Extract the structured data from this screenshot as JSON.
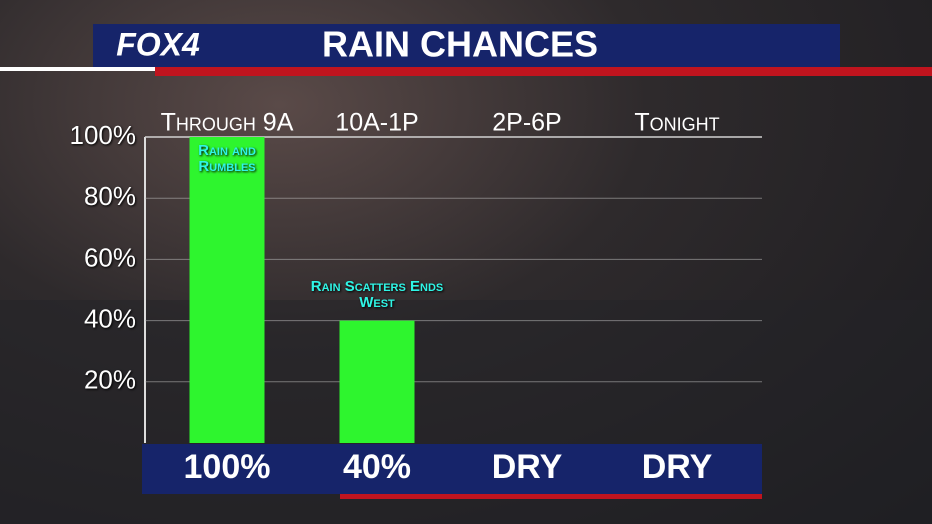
{
  "logo": "FOX4",
  "chart_data": {
    "type": "bar",
    "title": "RAIN CHANCES",
    "categories": [
      "Through 9A",
      "10A-1P",
      "2P-6P",
      "Tonight"
    ],
    "values": [
      100,
      40,
      0,
      0
    ],
    "value_labels": [
      "100%",
      "40%",
      "DRY",
      "DRY"
    ],
    "bar_notes": [
      "Rain and Rumbles",
      "Rain Scatters Ends West",
      null,
      null
    ],
    "color": "#2ef52e",
    "ylim": [
      0,
      100
    ],
    "yticks": [
      {
        "value": 20,
        "label": "20%"
      },
      {
        "value": 40,
        "label": "40%"
      },
      {
        "value": 60,
        "label": "60%"
      },
      {
        "value": 80,
        "label": "80%"
      },
      {
        "value": 100,
        "label": "100%"
      }
    ],
    "grid": true
  }
}
